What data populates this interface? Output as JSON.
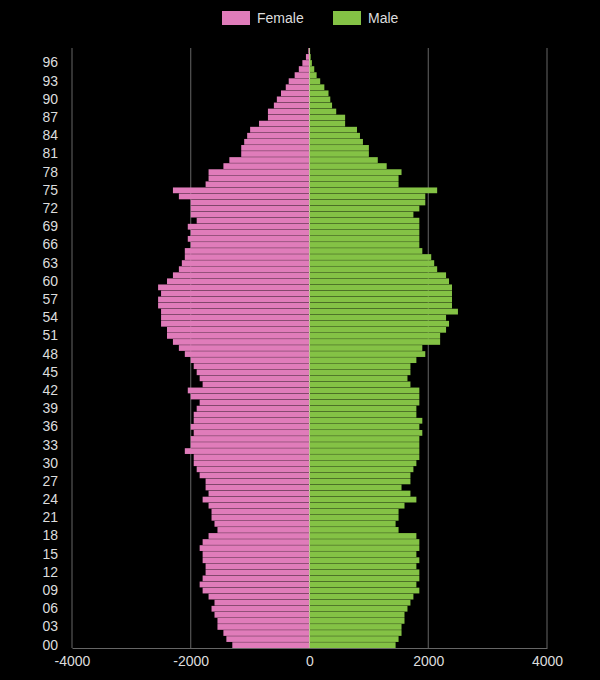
{
  "chart_data": {
    "type": "bar",
    "orientation": "horizontal",
    "stacked": false,
    "grid": true,
    "legend": "top",
    "categories": [
      "00",
      null,
      null,
      "03",
      null,
      null,
      "06",
      null,
      null,
      "09",
      null,
      null,
      "12",
      null,
      null,
      "15",
      null,
      null,
      "18",
      null,
      null,
      "21",
      null,
      null,
      "24",
      null,
      null,
      "27",
      null,
      null,
      "30",
      null,
      null,
      "33",
      null,
      null,
      "36",
      null,
      null,
      "39",
      null,
      null,
      "42",
      null,
      null,
      "45",
      null,
      null,
      "48",
      null,
      null,
      "51",
      null,
      null,
      "54",
      null,
      null,
      "57",
      null,
      null,
      "60",
      null,
      null,
      "63",
      null,
      null,
      "66",
      null,
      null,
      "69",
      null,
      null,
      "72",
      null,
      null,
      "75",
      null,
      null,
      "78",
      null,
      null,
      "81",
      null,
      null,
      "84",
      null,
      null,
      "87",
      null,
      null,
      "90",
      null,
      null,
      "93",
      null,
      null,
      "96",
      null,
      null
    ],
    "series": [
      {
        "name": "Female",
        "color": "#e07cba",
        "values": [
          -1300,
          -1400,
          -1450,
          -1550,
          -1550,
          -1600,
          -1650,
          -1600,
          -1700,
          -1800,
          -1850,
          -1800,
          -1750,
          -1750,
          -1800,
          -1800,
          -1850,
          -1800,
          -1700,
          -1550,
          -1600,
          -1650,
          -1650,
          -1700,
          -1800,
          -1700,
          -1750,
          -1750,
          -1850,
          -1900,
          -1950,
          -1950,
          -2100,
          -2000,
          -2000,
          -1950,
          -2000,
          -1950,
          -1950,
          -1900,
          -1850,
          -2000,
          -2050,
          -1800,
          -1850,
          -1900,
          -1950,
          -2000,
          -2100,
          -2200,
          -2300,
          -2400,
          -2400,
          -2500,
          -2500,
          -2500,
          -2550,
          -2550,
          -2500,
          -2550,
          -2400,
          -2300,
          -2200,
          -2150,
          -2100,
          -2100,
          -2000,
          -2050,
          -2000,
          -2050,
          -1900,
          -2000,
          -2000,
          -2000,
          -2200,
          -2300,
          -1750,
          -1700,
          -1700,
          -1450,
          -1350,
          -1150,
          -1150,
          -1100,
          -1050,
          -1000,
          -850,
          -700,
          -700,
          -600,
          -550,
          -480,
          -400,
          -350,
          -250,
          -180,
          -120,
          -60,
          -20
        ]
      },
      {
        "name": "Male",
        "color": "#84c245",
        "values": [
          1450,
          1500,
          1550,
          1550,
          1600,
          1600,
          1650,
          1700,
          1750,
          1850,
          1800,
          1850,
          1850,
          1800,
          1850,
          1800,
          1850,
          1850,
          1800,
          1500,
          1450,
          1500,
          1500,
          1600,
          1800,
          1700,
          1550,
          1700,
          1700,
          1750,
          1800,
          1850,
          1850,
          1850,
          1850,
          1900,
          1850,
          1900,
          1800,
          1800,
          1850,
          1850,
          1850,
          1700,
          1650,
          1700,
          1700,
          1800,
          1950,
          1900,
          2200,
          2200,
          2300,
          2350,
          2300,
          2500,
          2400,
          2400,
          2400,
          2400,
          2350,
          2300,
          2150,
          2100,
          2050,
          1900,
          1850,
          1850,
          1850,
          1850,
          1850,
          1750,
          1850,
          1950,
          1950,
          2150,
          1500,
          1500,
          1550,
          1300,
          1150,
          1000,
          1000,
          900,
          850,
          800,
          600,
          600,
          450,
          380,
          350,
          320,
          250,
          180,
          120,
          80,
          40,
          20,
          10
        ]
      }
    ],
    "xlim": [
      -4000,
      4000
    ],
    "xticks": [
      -4000,
      -2000,
      0,
      2000,
      4000
    ]
  }
}
